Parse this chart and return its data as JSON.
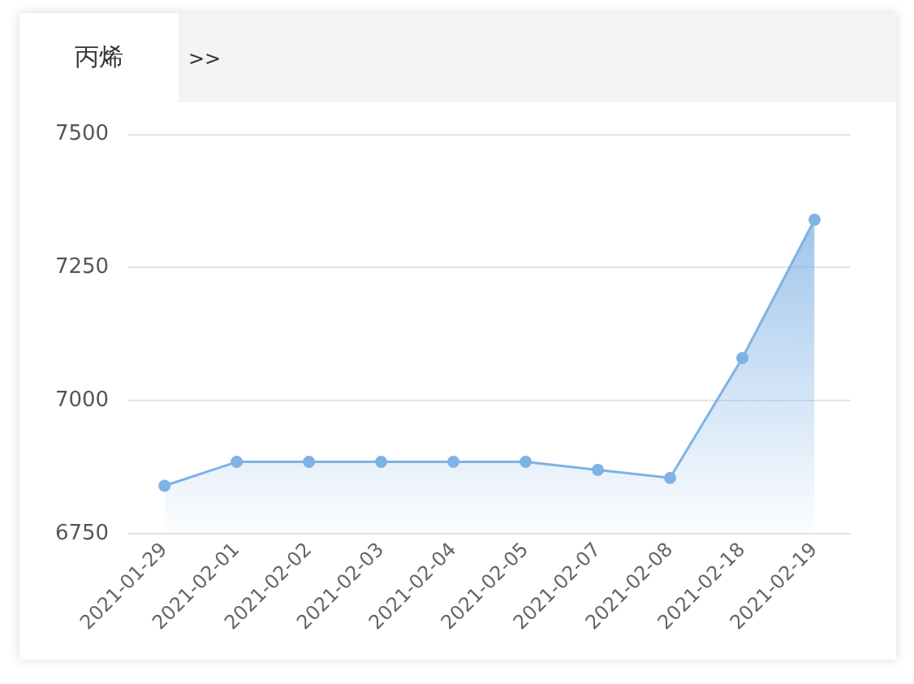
{
  "chart_data": {
    "type": "area",
    "title": "丙烯",
    "annotations": [
      ">>"
    ],
    "categories": [
      "2021-01-29",
      "2021-02-01",
      "2021-02-02",
      "2021-02-03",
      "2021-02-04",
      "2021-02-05",
      "2021-02-07",
      "2021-02-08",
      "2021-02-18",
      "2021-02-19"
    ],
    "series": [
      {
        "color": "#7fb2e5",
        "values": [
          6840,
          6885,
          6885,
          6885,
          6885,
          6885,
          6870,
          6855,
          7080,
          7340
        ]
      }
    ],
    "ylim": [
      6750,
      7500
    ],
    "yticks": [
      6750,
      7000,
      7250,
      7500
    ],
    "grid": "y",
    "marker": "circle",
    "legend": false
  }
}
